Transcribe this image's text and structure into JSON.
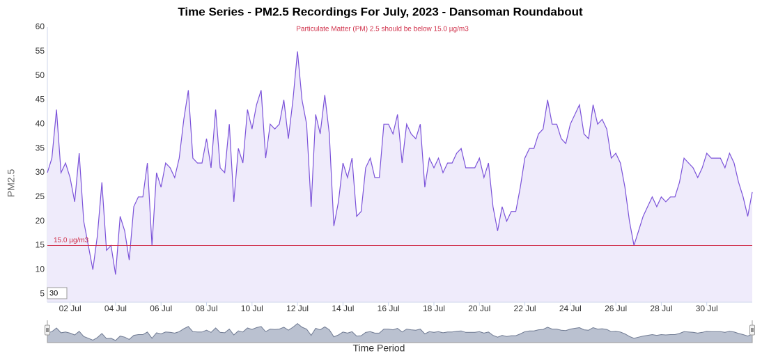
{
  "chart_data": {
    "type": "area",
    "title": "Time Series - PM2.5 Recordings For July, 2023 - Dansoman Roundabout",
    "subtitle": "Particulate Matter (PM) 2.5 should be below 15.0 µg/m3",
    "y_label": "PM2.5",
    "x_label": "Time Period",
    "range_input": "30",
    "threshold": {
      "value": 15,
      "label": "15.0 µg/m3",
      "color": "#d0304a"
    },
    "xlim": [
      1,
      32
    ],
    "xticks": [
      {
        "value": 2,
        "label": "02 Jul"
      },
      {
        "value": 4,
        "label": "04 Jul"
      },
      {
        "value": 6,
        "label": "06 Jul"
      },
      {
        "value": 8,
        "label": "08 Jul"
      },
      {
        "value": 10,
        "label": "10 Jul"
      },
      {
        "value": 12,
        "label": "12 Jul"
      },
      {
        "value": 14,
        "label": "14 Jul"
      },
      {
        "value": 16,
        "label": "16 Jul"
      },
      {
        "value": 18,
        "label": "18 Jul"
      },
      {
        "value": 20,
        "label": "20 Jul"
      },
      {
        "value": 22,
        "label": "22 Jul"
      },
      {
        "value": 24,
        "label": "24 Jul"
      },
      {
        "value": 26,
        "label": "26 Jul"
      },
      {
        "value": 28,
        "label": "28 Jul"
      },
      {
        "value": 30,
        "label": "30 Jul"
      }
    ],
    "ylim": [
      3.3,
      60
    ],
    "yticks": [
      5,
      10,
      15,
      20,
      25,
      30,
      35,
      40,
      45,
      50,
      55,
      60
    ],
    "grid": false,
    "x": [
      1,
      1.2,
      1.4,
      1.6,
      1.8,
      2,
      2.2,
      2.4,
      2.6,
      2.8,
      3,
      3.2,
      3.4,
      3.6,
      3.8,
      4,
      4.2,
      4.4,
      4.6,
      4.8,
      5,
      5.2,
      5.4,
      5.6,
      5.8,
      6,
      6.2,
      6.4,
      6.6,
      6.8,
      7,
      7.2,
      7.4,
      7.6,
      7.8,
      8,
      8.2,
      8.4,
      8.6,
      8.8,
      9,
      9.2,
      9.4,
      9.6,
      9.8,
      10,
      10.2,
      10.4,
      10.6,
      10.8,
      11,
      11.2,
      11.4,
      11.6,
      11.8,
      12,
      12.2,
      12.4,
      12.6,
      12.8,
      13,
      13.2,
      13.4,
      13.6,
      13.8,
      14,
      14.2,
      14.4,
      14.6,
      14.8,
      15,
      15.2,
      15.4,
      15.6,
      15.8,
      16,
      16.2,
      16.4,
      16.6,
      16.8,
      17,
      17.2,
      17.4,
      17.6,
      17.8,
      18,
      18.2,
      18.4,
      18.6,
      18.8,
      19,
      19.2,
      19.4,
      19.6,
      19.8,
      20,
      20.2,
      20.4,
      20.6,
      20.8,
      21,
      21.2,
      21.4,
      21.6,
      21.8,
      22,
      22.2,
      22.4,
      22.6,
      22.8,
      23,
      23.2,
      23.4,
      23.6,
      23.8,
      24,
      24.2,
      24.4,
      24.6,
      24.8,
      25,
      25.2,
      25.4,
      25.6,
      25.8,
      26,
      26.2,
      26.4,
      26.6,
      26.8,
      27,
      27.2,
      27.4,
      27.6,
      27.8,
      28,
      28.2,
      28.4,
      28.6,
      28.8,
      29,
      29.2,
      29.4,
      29.6,
      29.8,
      30,
      30.2,
      30.4,
      30.6,
      30.8,
      31,
      31.2,
      31.4,
      31.6,
      31.8,
      32
    ],
    "series": [
      {
        "name": "PM2.5",
        "color": "#7b52d9",
        "fill": "#efebfb",
        "navigator_color": "#a9b1c4",
        "values": [
          30,
          33,
          43,
          30,
          32,
          29,
          24,
          34,
          20,
          15,
          10,
          17,
          28,
          14,
          15,
          9,
          21,
          18,
          12,
          23,
          25,
          25,
          32,
          15,
          30,
          27,
          32,
          31,
          29,
          33,
          41,
          47,
          33,
          32,
          32,
          37,
          31,
          43,
          31,
          30,
          40,
          24,
          35,
          32,
          43,
          39,
          44,
          47,
          33,
          40,
          39,
          40,
          45,
          37,
          45,
          55,
          45,
          40,
          23,
          42,
          38,
          46,
          38,
          19,
          24,
          32,
          29,
          33,
          21,
          22,
          31,
          33,
          29,
          29,
          40,
          40,
          38,
          42,
          32,
          40,
          38,
          37,
          40,
          27,
          33,
          31,
          33,
          30,
          32,
          32,
          34,
          35,
          31,
          31,
          31,
          33,
          29,
          32,
          23,
          18,
          23,
          20,
          22,
          22,
          27,
          33,
          35,
          35,
          38,
          39,
          45,
          40,
          40,
          37,
          36,
          40,
          42,
          44,
          38,
          37,
          44,
          40,
          41,
          39,
          33,
          34,
          32,
          27,
          20,
          15,
          18,
          21,
          23,
          25,
          23,
          25,
          24,
          25,
          25,
          28,
          33,
          32,
          31,
          29,
          31,
          34,
          33,
          33,
          33,
          31,
          34,
          32,
          28,
          25,
          21,
          26
        ]
      }
    ]
  }
}
